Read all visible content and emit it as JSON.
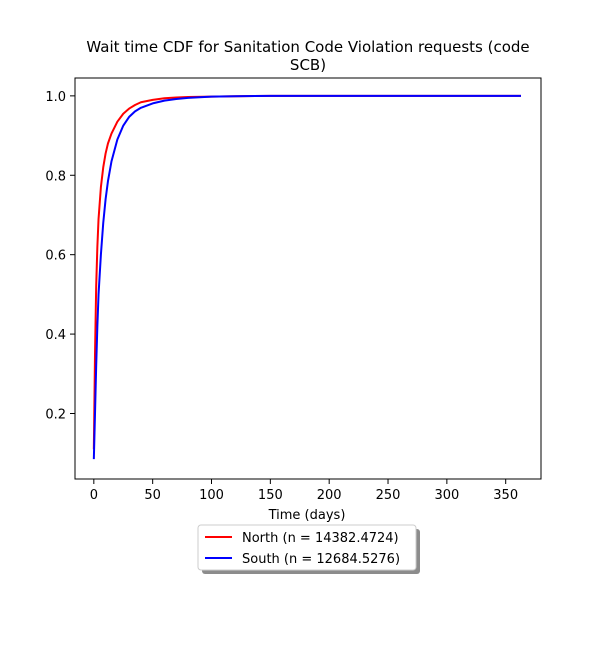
{
  "chart_data": {
    "type": "line",
    "title": "Wait time CDF for Sanitation Code Violation  requests (code SCB)",
    "title_lines": [
      "Wait time CDF for Sanitation Code Violation  requests (code",
      "SCB)"
    ],
    "xlabel": "Time (days)",
    "ylabel": "",
    "xlim": [
      -16,
      380
    ],
    "ylim": [
      0.035,
      1.045
    ],
    "xticks": [
      0,
      50,
      100,
      150,
      200,
      250,
      300,
      350
    ],
    "yticks": [
      0.2,
      0.4,
      0.6,
      0.8,
      1.0
    ],
    "ytick_labels": [
      "0.2",
      "0.4",
      "0.6",
      "0.8",
      "1.0"
    ],
    "grid": false,
    "legend_position": "below-center",
    "series": [
      {
        "name": "North (n = 14382.4724)",
        "color": "#ff0000",
        "x": [
          0,
          1,
          2,
          3,
          4,
          6,
          8,
          10,
          12,
          15,
          20,
          25,
          30,
          35,
          40,
          50,
          60,
          70,
          80,
          100,
          120,
          150,
          200,
          250,
          300,
          363
        ],
        "y": [
          0.11,
          0.35,
          0.52,
          0.62,
          0.69,
          0.77,
          0.82,
          0.855,
          0.88,
          0.905,
          0.935,
          0.955,
          0.968,
          0.977,
          0.984,
          0.99,
          0.994,
          0.996,
          0.997,
          0.998,
          0.999,
          1.0,
          1.0,
          1.0,
          1.0,
          1.0
        ]
      },
      {
        "name": "South (n = 12684.5276)",
        "color": "#0000ff",
        "x": [
          0,
          1,
          2,
          3,
          4,
          6,
          8,
          10,
          12,
          15,
          20,
          25,
          30,
          35,
          40,
          50,
          60,
          70,
          80,
          100,
          120,
          150,
          200,
          250,
          300,
          363
        ],
        "y": [
          0.085,
          0.2,
          0.32,
          0.42,
          0.5,
          0.6,
          0.68,
          0.74,
          0.785,
          0.835,
          0.89,
          0.925,
          0.947,
          0.961,
          0.97,
          0.981,
          0.988,
          0.992,
          0.995,
          0.998,
          0.999,
          1.0,
          1.0,
          1.0,
          1.0,
          1.0
        ]
      }
    ]
  }
}
